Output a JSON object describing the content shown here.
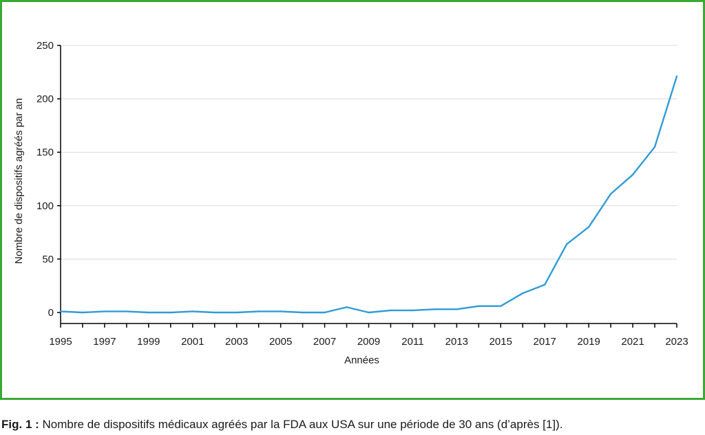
{
  "caption": {
    "label": "Fig. 1 :",
    "text": "Nombre de dispositifs médicaux agréés par la FDA aux USA sur une période de 30 ans (d’après [1])."
  },
  "colors": {
    "frame": "#3aa935",
    "line": "#2e9bd6",
    "grid": "#d9d9d9",
    "axis": "#000000"
  },
  "chart_data": {
    "type": "line",
    "title": "",
    "xlabel": "Années",
    "ylabel": "Nombre de dispositifs agréés par an",
    "xlim": [
      1995,
      2023
    ],
    "ylim": [
      0,
      250
    ],
    "x_ticks": [
      1995,
      1997,
      1999,
      2001,
      2003,
      2005,
      2007,
      2009,
      2011,
      2013,
      2015,
      2017,
      2019,
      2021,
      2023
    ],
    "y_ticks": [
      0,
      50,
      100,
      150,
      200,
      250
    ],
    "grid": "horizontal",
    "legend": "none",
    "series": [
      {
        "name": "",
        "x": [
          1995,
          1996,
          1997,
          1998,
          1999,
          2000,
          2001,
          2002,
          2003,
          2004,
          2005,
          2006,
          2007,
          2008,
          2009,
          2010,
          2011,
          2012,
          2013,
          2014,
          2015,
          2016,
          2017,
          2018,
          2019,
          2020,
          2021,
          2022,
          2023
        ],
        "values": [
          1,
          0,
          1,
          1,
          0,
          0,
          1,
          0,
          0,
          1,
          1,
          0,
          0,
          5,
          0,
          2,
          2,
          3,
          3,
          6,
          6,
          18,
          26,
          64,
          80,
          111,
          129,
          155,
          221
        ]
      }
    ]
  }
}
